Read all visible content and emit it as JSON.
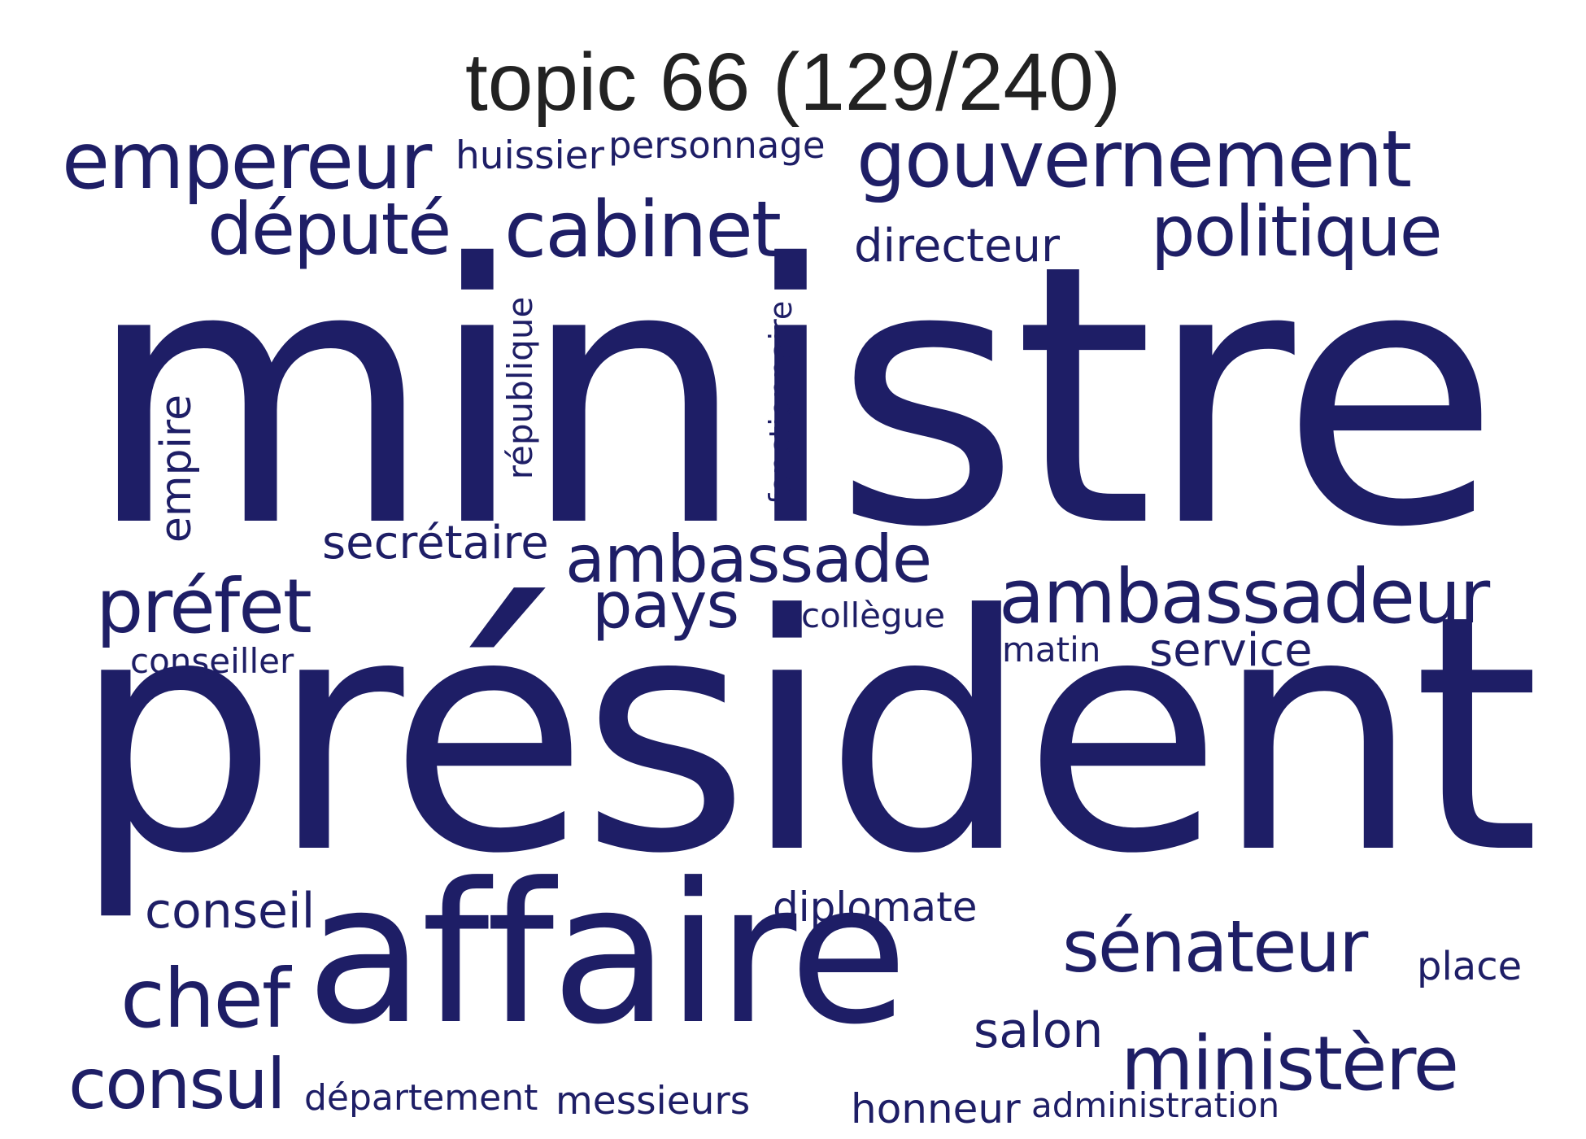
{
  "title": "topic 66 (129/240)",
  "colors": {
    "word": "#1e1e66",
    "title": "#222222",
    "background": "#ffffff"
  },
  "words": {
    "ministre": "ministre",
    "president": "président",
    "affaire": "affaire",
    "gouvernement": "gouvernement",
    "empereur": "empereur",
    "cabinet": "cabinet",
    "depute": "député",
    "politique": "politique",
    "ambassadeur": "ambassadeur",
    "ambassade": "ambassade",
    "prefet": "préfet",
    "senateur": "sénateur",
    "ministere": "ministère",
    "chef": "chef",
    "consul": "consul",
    "pays": "pays",
    "conseil": "conseil",
    "secretaire": "secrétaire",
    "directeur": "directeur",
    "huissier": "huissier",
    "personnage": "personnage",
    "republique": "république",
    "fonctionnaire": "fonctionnaire",
    "empire": "empire",
    "service": "service",
    "salon": "salon",
    "diplomate": "diplomate",
    "collegue": "collègue",
    "conseiller": "conseiller",
    "matin": "matin",
    "place": "place",
    "departement": "département",
    "messieurs": "messieurs",
    "honneur": "honneur",
    "administration": "administration"
  }
}
